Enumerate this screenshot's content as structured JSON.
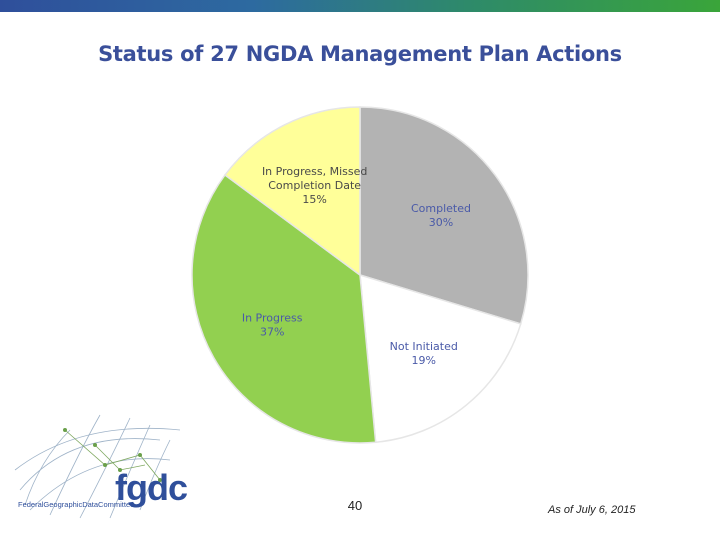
{
  "slide": {
    "page_number": "40",
    "date_note": "As of July 6, 2015"
  },
  "logo": {
    "wordmark": "fgdc",
    "subtitle": "FederalGeographicDataCommittee"
  },
  "colors": {
    "title": "#3a4f9a",
    "completed": "#b3b3b3",
    "not_initiated": "#ffffff",
    "in_progress": "#92d050",
    "missed": "#ffff99",
    "label_blue": "#4a5aa8",
    "label_dark": "#4a4a4a"
  },
  "chart_data": {
    "type": "pie",
    "title": "Status of 27 NGDA Management Plan Actions",
    "slices": [
      {
        "label": "Completed",
        "pct_label": "30%",
        "value": 30,
        "color": "#b3b3b3",
        "text_color": "#4a5aa8"
      },
      {
        "label": "Not Initiated",
        "pct_label": "19%",
        "value": 19,
        "color": "#ffffff",
        "text_color": "#4a5aa8"
      },
      {
        "label": "In Progress",
        "pct_label": "37%",
        "value": 37,
        "color": "#92d050",
        "text_color": "#4a5aa8"
      },
      {
        "label": "In Progress, Missed Completion Date",
        "label_lines": [
          "In Progress, Missed",
          "Completion Date"
        ],
        "pct_label": "15%",
        "value": 15,
        "color": "#ffff99",
        "text_color": "#4a4a4a"
      }
    ]
  }
}
